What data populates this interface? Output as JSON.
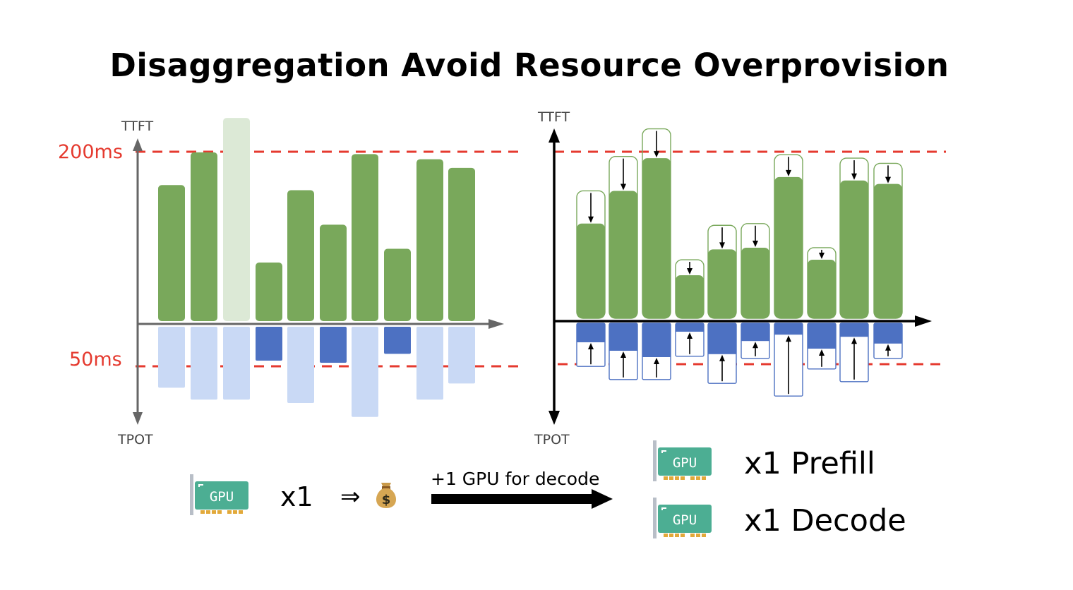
{
  "title": "Disaggregation Avoid Resource Overprovision",
  "left_panel": {
    "y_top_label": "TTFT",
    "y_bottom_label": "TPOT",
    "threshold_ttft_label": "200ms",
    "threshold_tpot_label": "50ms",
    "ttft_bars": [
      0.79,
      0.98,
      1.18,
      0.34,
      0.76,
      0.56,
      0.97,
      0.42,
      0.94,
      0.89
    ],
    "ttft_bar_faded": [
      false,
      false,
      true,
      false,
      false,
      false,
      false,
      false,
      false,
      false
    ],
    "tpot_bars": [
      1.44,
      1.72,
      1.72,
      0.8,
      1.8,
      0.85,
      2.13,
      0.64,
      1.72,
      1.34
    ],
    "tpot_bar_faded": [
      true,
      true,
      true,
      false,
      true,
      false,
      true,
      false,
      true,
      true
    ]
  },
  "right_panel": {
    "y_top_label": "TTFT",
    "y_bottom_label": "TPOT",
    "ttft_bars": [
      0.55,
      0.74,
      0.93,
      0.25,
      0.4,
      0.41,
      0.82,
      0.34,
      0.8,
      0.78
    ],
    "ttft_outline": [
      0.74,
      0.94,
      1.1,
      0.34,
      0.54,
      0.55,
      0.95,
      0.41,
      0.93,
      0.9
    ],
    "tpot_bars": [
      0.45,
      0.65,
      0.8,
      0.2,
      0.73,
      0.42,
      0.27,
      0.6,
      0.32,
      0.48
    ],
    "tpot_outline": [
      1.02,
      1.33,
      1.33,
      0.78,
      1.42,
      0.83,
      1.72,
      1.08,
      1.38,
      0.83
    ]
  },
  "colors": {
    "green": "#79a85b",
    "green_faded": "#dce9d6",
    "blue": "#4d71c2",
    "blue_faded": "#c9d9f5",
    "threshold": "#e53a2f",
    "axis_left": "#666666",
    "axis_right": "#000000"
  },
  "bottom": {
    "gpu_chip_label": "GPU",
    "left_count": "x1",
    "implies_symbol": "⇒",
    "money_icon": "money-bag-icon",
    "arrow_label": "+1 GPU for decode",
    "prefill_label": "x1 Prefill",
    "decode_label": "x1 Decode"
  }
}
